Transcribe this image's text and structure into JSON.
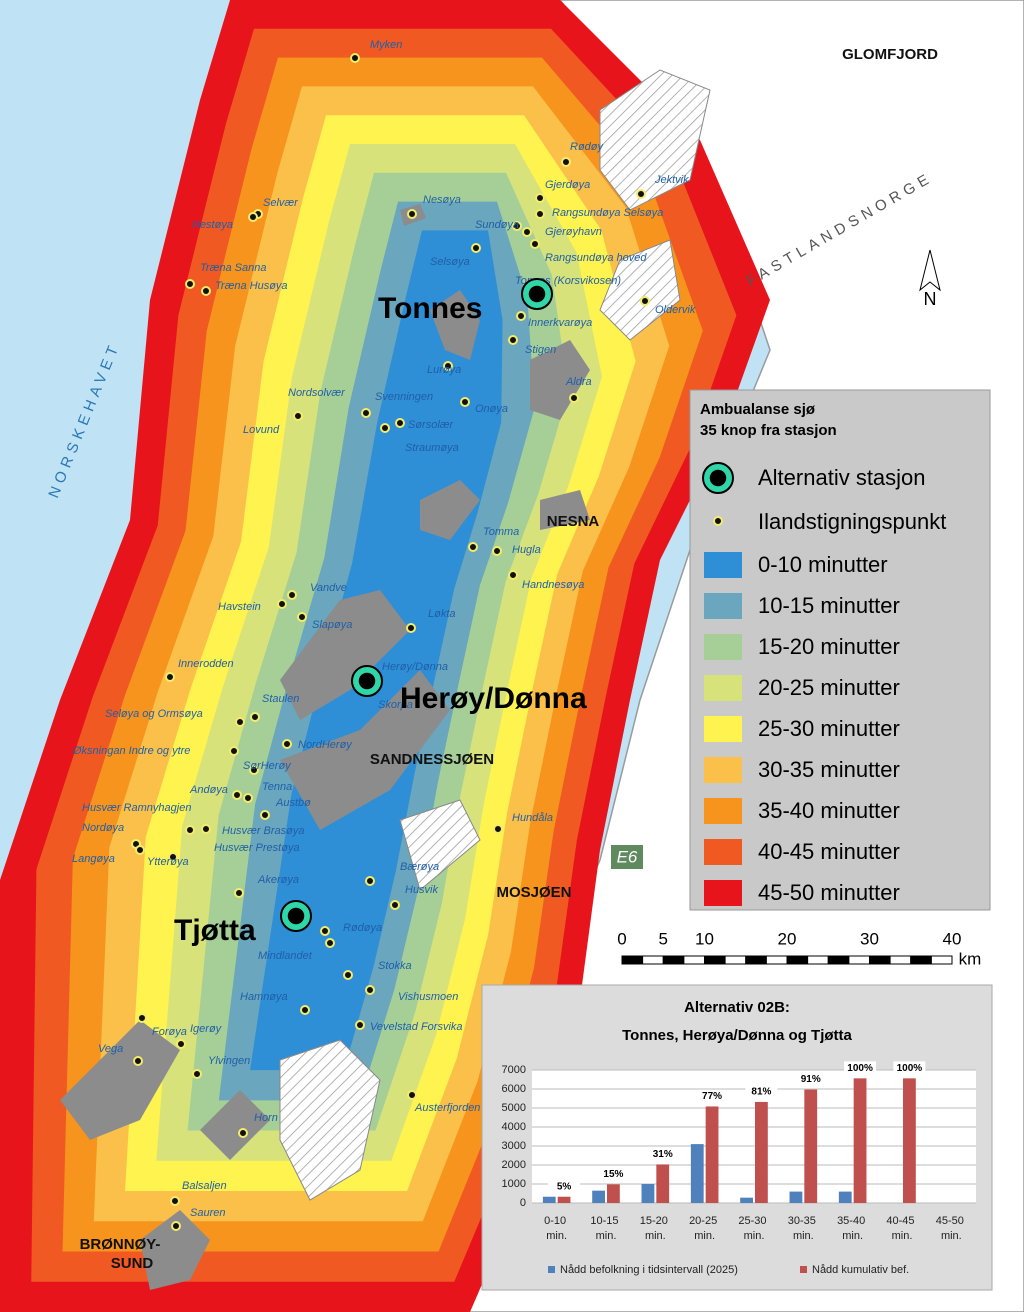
{
  "map": {
    "north": "N",
    "stations": [
      "Tonnes",
      "Herøy/Dønna",
      "Tjøtta"
    ],
    "regions": [
      "GLOMFJORD",
      "NESNA",
      "SANDNESSJØEN",
      "MOSJØEN",
      "BRØNNØY-",
      "SUND"
    ],
    "seas": [
      "NORSKEHAVET",
      "FASTLANDSNORGE"
    ],
    "road": "E6",
    "places": [
      "Myken",
      "Rødøy",
      "Gjerdøya",
      "Jektvik",
      "Nesøya",
      "Rangsundøya Selsøya",
      "Sundøya",
      "Gjerøyhavn",
      "Selvær",
      "Hestøya",
      "Rangsundøya hoved",
      "Selsøya",
      "Tonnes (Korsvikosen)",
      "Træna Sanna",
      "Træna Husøya",
      "Oldervik",
      "Innerkvarøya",
      "Stigen",
      "Lurøya",
      "Aldra",
      "Onøya",
      "Nordsolvær",
      "Svenningen",
      "Sørsolær",
      "Lovund",
      "Straumøya",
      "Tomma",
      "Hugla",
      "Handnesøya",
      "Vandve",
      "Havstein",
      "Slapøya",
      "Løkta",
      "Innerodden",
      "Herøy/Dønna",
      "Skorpa",
      "Seløya og Ormsøya",
      "Staulen",
      "Øksningan Indre og ytre",
      "NordHerøy",
      "SørHerøy",
      "Andøya",
      "Tenna",
      "Husvær Ramnyhagjen",
      "Austbø",
      "Nordøya",
      "Husvær Brasøya",
      "Husvær Prestøya",
      "Langøya",
      "Ytterøya",
      "Hundåla",
      "Bærøya",
      "Husvik",
      "Akerøya",
      "Rødøya",
      "Mindlandet",
      "Stokka",
      "Vishusmoen",
      "Hamnøya",
      "Forøya",
      "Vevelstad Forsvika",
      "Igerøy",
      "Vega",
      "Ylvingen",
      "Austerfjorden",
      "Horn",
      "Balsaljen",
      "Sauren"
    ]
  },
  "legend": {
    "title": [
      "Ambualanse sjø",
      "35 knop fra stasjon"
    ],
    "station": "Alternativ stasjon",
    "landing": "Ilandstigningspunkt",
    "items": [
      {
        "label": "0-10 minutter",
        "color": "#2f8fd6"
      },
      {
        "label": "10-15 minutter",
        "color": "#6aa6bd"
      },
      {
        "label": "15-20 minutter",
        "color": "#a6cf98"
      },
      {
        "label": "20-25 minutter",
        "color": "#d7e27a"
      },
      {
        "label": "25-30 minutter",
        "color": "#fff34f"
      },
      {
        "label": "30-35 minutter",
        "color": "#fbc04a"
      },
      {
        "label": "35-40 minutter",
        "color": "#f7941d"
      },
      {
        "label": "40-45 minutter",
        "color": "#f05a22"
      },
      {
        "label": "45-50 minutter",
        "color": "#e8141b"
      }
    ]
  },
  "scale": {
    "ticks": [
      0,
      5,
      10,
      20,
      30,
      40
    ],
    "unit": "km"
  },
  "chart_data": {
    "type": "bar",
    "title": "Alternativ 02B:",
    "subtitle": "Tonnes, Herøya/Dønna og Tjøtta",
    "categories": [
      "0-10 min.",
      "10-15 min.",
      "15-20 min.",
      "20-25 min.",
      "25-30 min.",
      "30-35 min.",
      "35-40 min.",
      "40-45 min.",
      "45-50 min."
    ],
    "series": [
      {
        "name": "Nådd befolkning i tidsintervall (2025)",
        "color": "#4f81bd",
        "values": [
          330,
          650,
          1000,
          3100,
          280,
          600,
          600,
          0,
          0
        ]
      },
      {
        "name": "Nådd kumulativ bef.",
        "color": "#c0504d",
        "values": [
          330,
          980,
          2030,
          5080,
          5320,
          5970,
          6560,
          6560,
          null
        ],
        "value_labels": [
          "5%",
          "15%",
          "31%",
          "77%",
          "81%",
          "91%",
          "100%",
          "100%",
          null
        ]
      }
    ],
    "ylim": [
      0,
      7000
    ],
    "yticks": [
      0,
      1000,
      2000,
      3000,
      4000,
      5000,
      6000,
      7000
    ],
    "grid": true
  }
}
